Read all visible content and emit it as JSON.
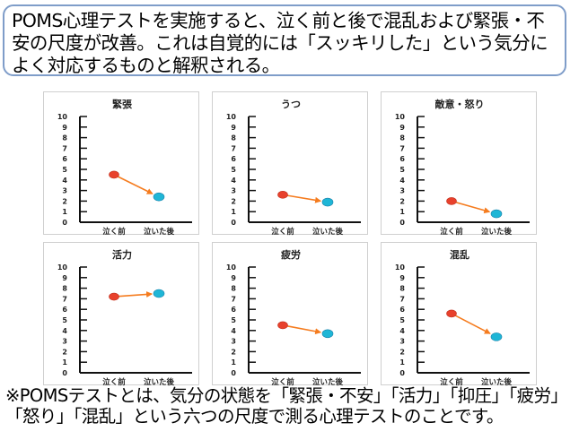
{
  "callout": {
    "text": "POMS心理テストを実施すると、泣く前と後で混乱および緊張・不安の尺度が改善。これは自覚的には「スッキリした」という気分によく対応するものと解釈される。"
  },
  "footnote": {
    "text": "※POMSテストとは、気分の状態を「緊張・不安」「活力」「抑圧」「疲労」「怒り」「混乱」という六つの尺度で測る心理テストのことです。"
  },
  "colors": {
    "before": "#e8412c",
    "after": "#1fb6d6",
    "arrow": "#f57c1f",
    "border": "#7f9dc9"
  },
  "chart_data": [
    {
      "type": "line",
      "title": "緊張",
      "categories": [
        "泣く前",
        "泣いた後"
      ],
      "values": [
        4.5,
        2.4
      ],
      "ylim": [
        0,
        10
      ],
      "yticks": [
        "0",
        "1",
        "2",
        "3",
        "4",
        "5",
        "6",
        "7",
        "8",
        "9",
        "10"
      ]
    },
    {
      "type": "line",
      "title": "うつ",
      "categories": [
        "泣く前",
        "泣いた後"
      ],
      "values": [
        2.6,
        1.9
      ],
      "ylim": [
        0,
        10
      ],
      "yticks": [
        "0",
        "1",
        "2",
        "3",
        "4",
        "5",
        "6",
        "7",
        "8",
        "9",
        "10"
      ]
    },
    {
      "type": "line",
      "title": "敵意・怒り",
      "categories": [
        "泣く前",
        "泣いた後"
      ],
      "values": [
        2.0,
        0.8
      ],
      "ylim": [
        0,
        10
      ],
      "yticks": [
        "0",
        "1",
        "2",
        "3",
        "4",
        "5",
        "6",
        "7",
        "8",
        "9",
        "10"
      ]
    },
    {
      "type": "line",
      "title": "活力",
      "categories": [
        "泣く前",
        "泣いた後"
      ],
      "values": [
        7.2,
        7.5
      ],
      "ylim": [
        0,
        10
      ],
      "yticks": [
        "0",
        "1",
        "2",
        "3",
        "4",
        "5",
        "6",
        "7",
        "8",
        "9",
        "10"
      ]
    },
    {
      "type": "line",
      "title": "疲労",
      "categories": [
        "泣く前",
        "泣いた後"
      ],
      "values": [
        4.5,
        3.7
      ],
      "ylim": [
        0,
        10
      ],
      "yticks": [
        "0",
        "1",
        "2",
        "3",
        "4",
        "5",
        "6",
        "7",
        "8",
        "9",
        "10"
      ]
    },
    {
      "type": "line",
      "title": "混乱",
      "categories": [
        "泣く前",
        "泣いた後"
      ],
      "values": [
        5.6,
        3.4
      ],
      "ylim": [
        0,
        10
      ],
      "yticks": [
        "0",
        "1",
        "2",
        "3",
        "4",
        "5",
        "6",
        "7",
        "8",
        "9",
        "10"
      ]
    }
  ]
}
